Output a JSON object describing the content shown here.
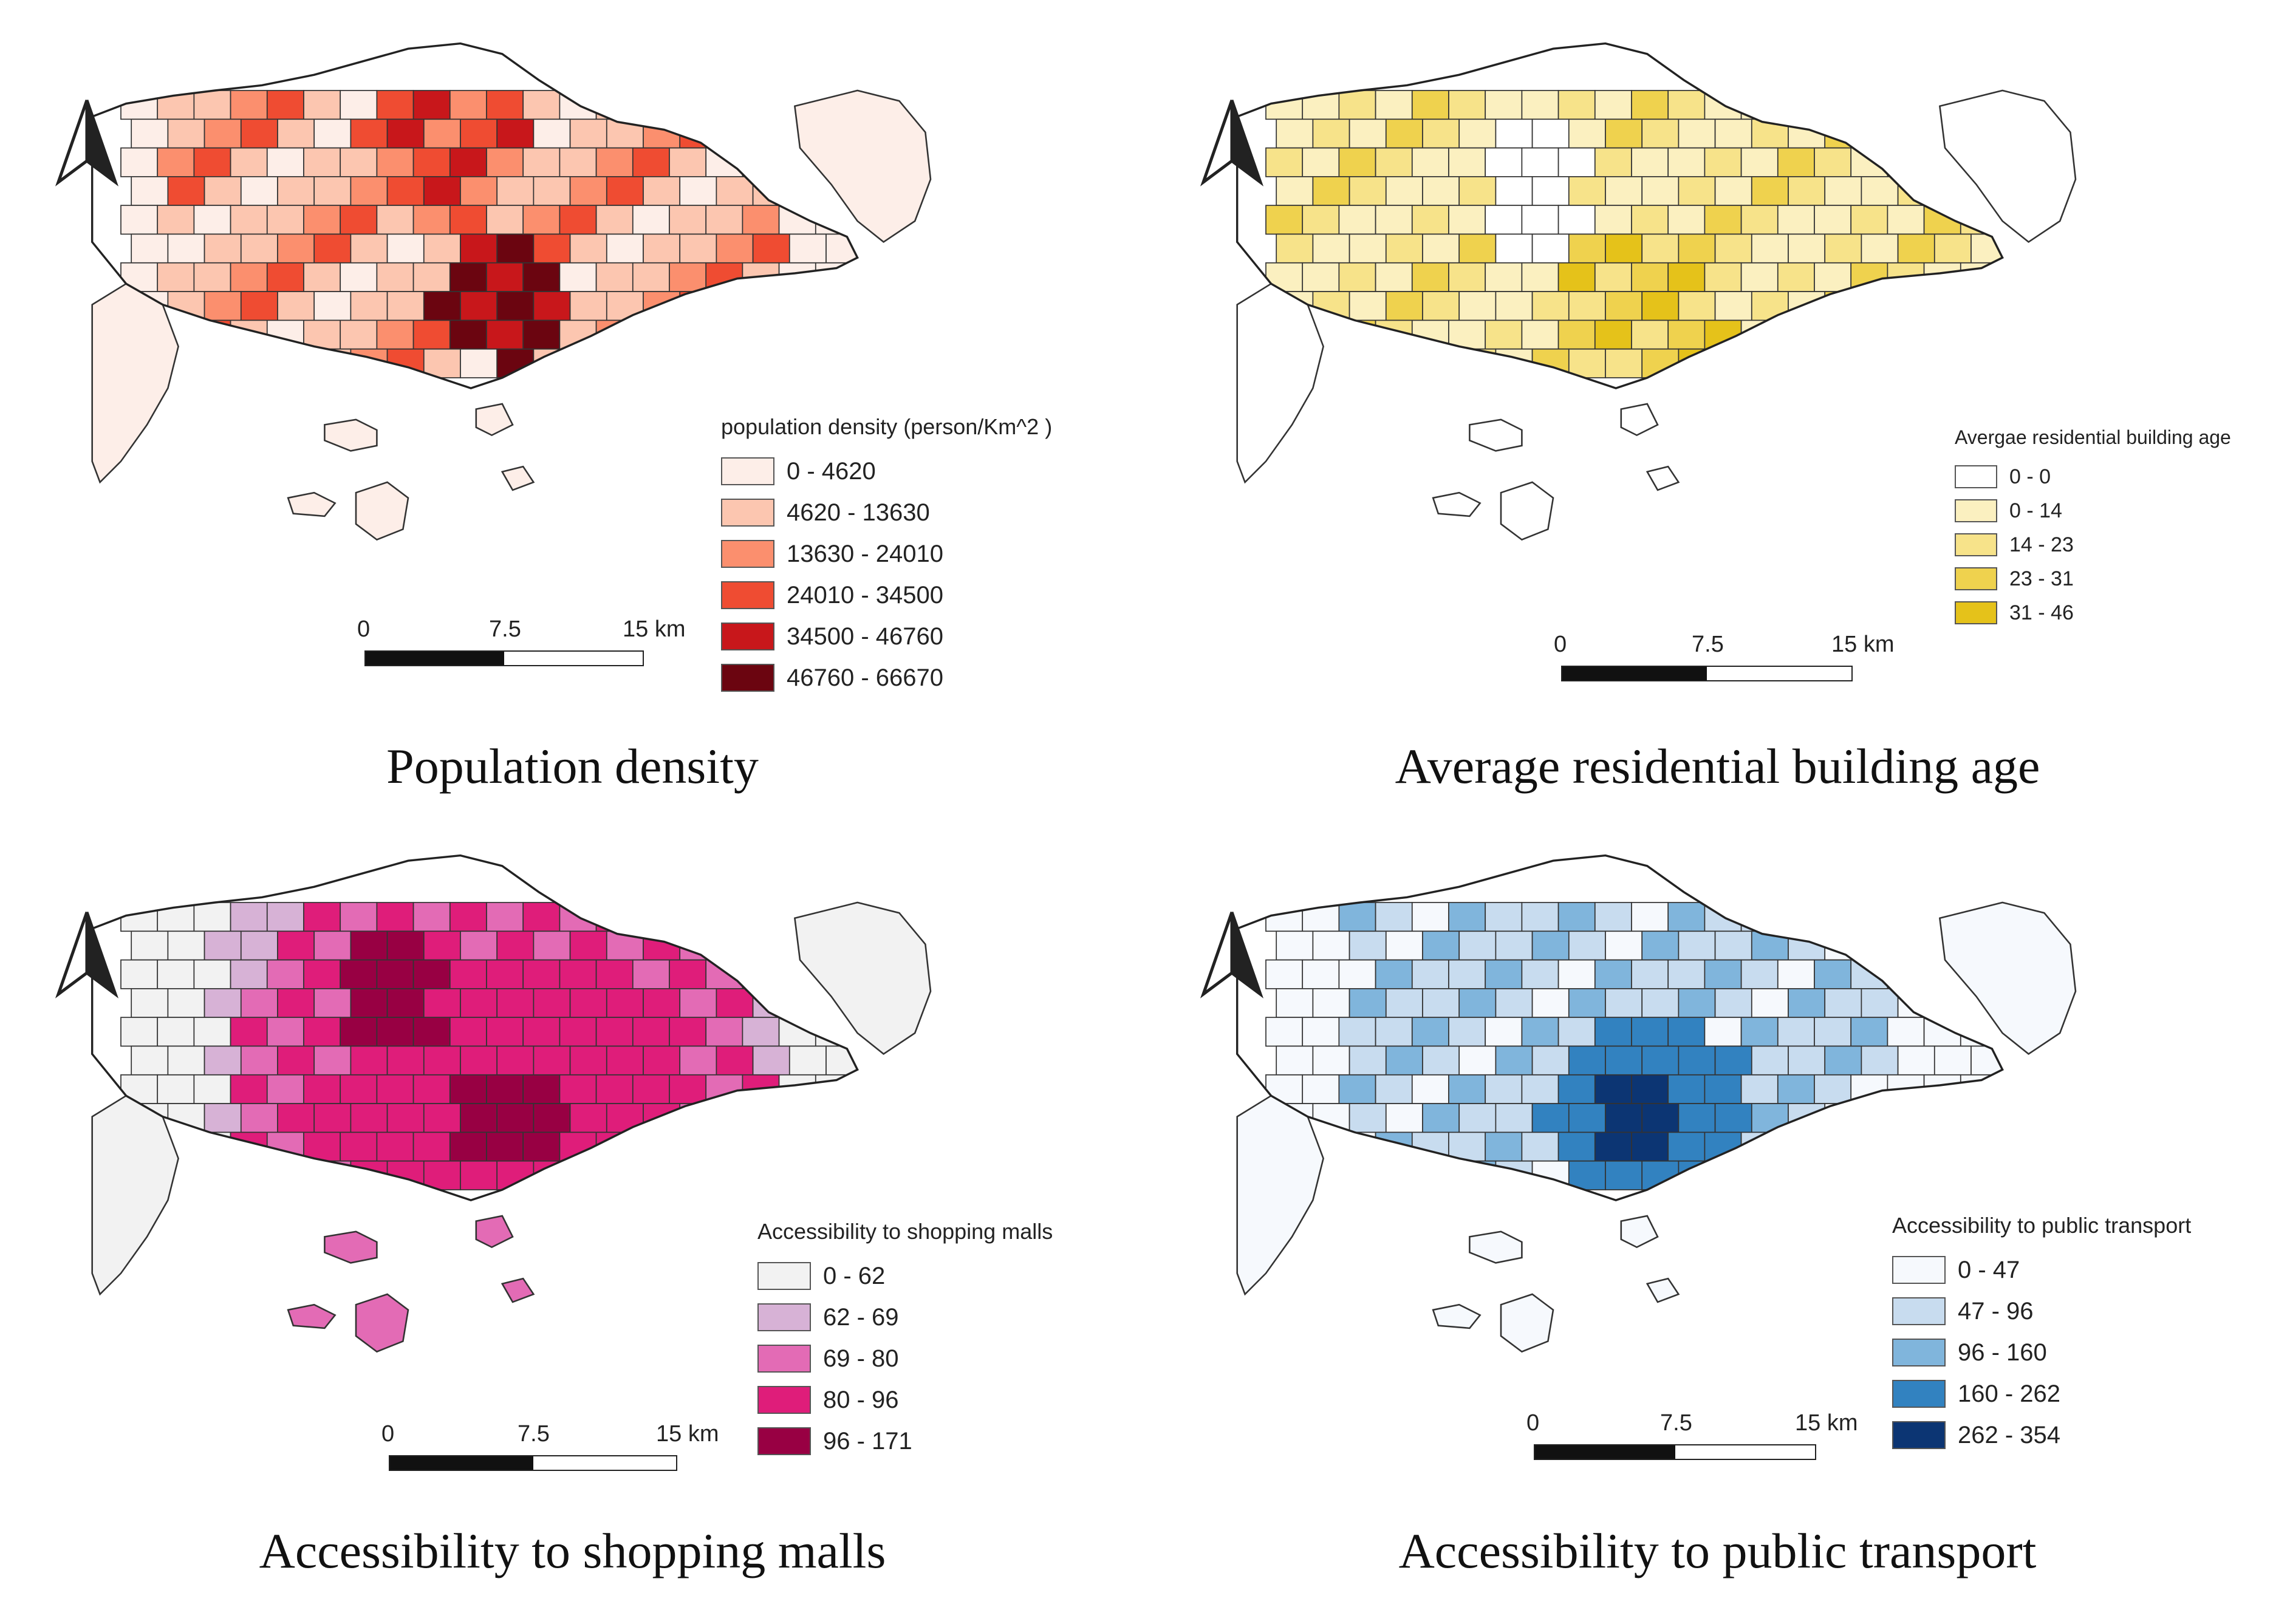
{
  "panels": [
    {
      "id": "population-density",
      "caption": "Population density",
      "legend_title": "population density (person/Km^2 )",
      "classes": [
        {
          "label": "0 - 4620",
          "color": "#fdeee8"
        },
        {
          "label": "4620 - 13630",
          "color": "#fcc6b0"
        },
        {
          "label": "13630 - 24010",
          "color": "#fb8f6e"
        },
        {
          "label": "24010 - 34500",
          "color": "#ef4c32"
        },
        {
          "label": "34500 - 46760",
          "color": "#c8171b"
        },
        {
          "label": "46760 - 66670",
          "color": "#6b0510"
        }
      ],
      "scale": {
        "start": "0",
        "mid": "7.5",
        "end": "15 km"
      }
    },
    {
      "id": "building-age",
      "caption": "Average residential building age",
      "legend_title": "Avergae residential building age",
      "classes": [
        {
          "label": "0 - 0",
          "color": "#ffffff"
        },
        {
          "label": "0 - 14",
          "color": "#fbf0c0"
        },
        {
          "label": "14 - 23",
          "color": "#f7e38a"
        },
        {
          "label": "23 - 31",
          "color": "#efd24e"
        },
        {
          "label": "31 - 46",
          "color": "#e5c21a"
        }
      ],
      "scale": {
        "start": "0",
        "mid": "7.5",
        "end": "15 km"
      }
    },
    {
      "id": "shopping-malls",
      "caption": "Accessibility to shopping malls",
      "legend_title": "Accessibility to shopping malls",
      "classes": [
        {
          "label": "0 - 62",
          "color": "#f2f2f2"
        },
        {
          "label": "62 - 69",
          "color": "#d7b2d6"
        },
        {
          "label": "69 - 80",
          "color": "#e36bb5"
        },
        {
          "label": "80 - 96",
          "color": "#df1d7a"
        },
        {
          "label": "96 - 171",
          "color": "#980043"
        }
      ],
      "scale": {
        "start": "0",
        "mid": "7.5",
        "end": "15 km"
      }
    },
    {
      "id": "public-transport",
      "caption": "Accessibility to public transport",
      "legend_title": "Accessibility to public transport",
      "classes": [
        {
          "label": "0 - 47",
          "color": "#f6f9fd"
        },
        {
          "label": "47 - 96",
          "color": "#c8dcef"
        },
        {
          "label": "96 - 160",
          "color": "#80b5dc"
        },
        {
          "label": "160 - 262",
          "color": "#3282c0"
        },
        {
          "label": "262 - 354",
          "color": "#0c3573"
        }
      ],
      "scale": {
        "start": "0",
        "mid": "7.5",
        "end": "15 km"
      }
    }
  ]
}
